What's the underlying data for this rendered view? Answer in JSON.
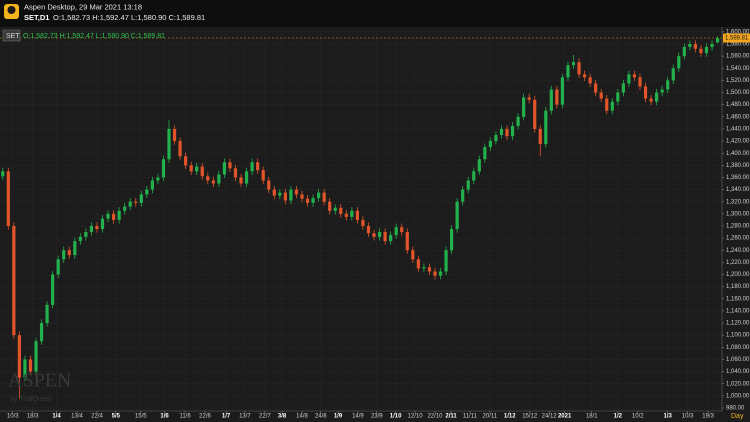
{
  "header": {
    "app": "Aspen Desktop, 29 Mar 2021 13:18",
    "symbol": "SET,D1",
    "ohlc": "O:1,582.73 H:1,592.47 L:1,580.90 C:1,589.81"
  },
  "legend": {
    "symbol": "SET",
    "ohlc": "O:1,582.73 H:1,592.47 L:1,580.90 C:1,589.81"
  },
  "watermark": {
    "brand": "ASPEN",
    "by": "by TrialQuest"
  },
  "chart_data": {
    "type": "candlestick",
    "up_color": "#22b14c",
    "down_color": "#e2552b",
    "grid": true,
    "open": [
      1362,
      1370,
      1280,
      1100,
      1030,
      1060,
      1040,
      1090,
      1120,
      1150,
      1200,
      1225,
      1240,
      1232,
      1255,
      1262,
      1270,
      1280,
      1275,
      1292,
      1300,
      1290,
      1305,
      1312,
      1320,
      1318,
      1332,
      1340,
      1355,
      1360,
      1390,
      1440,
      1420,
      1395,
      1380,
      1370,
      1378,
      1362,
      1355,
      1350,
      1365,
      1385,
      1375,
      1360,
      1350,
      1370,
      1385,
      1372,
      1355,
      1340,
      1330,
      1335,
      1322,
      1340,
      1332,
      1325,
      1318,
      1326,
      1335,
      1320,
      1305,
      1310,
      1300,
      1295,
      1305,
      1290,
      1280,
      1268,
      1262,
      1270,
      1255,
      1265,
      1278,
      1270,
      1240,
      1225,
      1210,
      1212,
      1205,
      1198,
      1205,
      1240,
      1275,
      1320,
      1340,
      1355,
      1370,
      1390,
      1410,
      1420,
      1430,
      1440,
      1428,
      1445,
      1460,
      1492,
      1488,
      1440,
      1415,
      1470,
      1505,
      1480,
      1525,
      1545,
      1550,
      1530,
      1525,
      1515,
      1500,
      1490,
      1470,
      1485,
      1500,
      1515,
      1530,
      1525,
      1510,
      1490,
      1485,
      1500,
      1505,
      1520,
      1540,
      1560,
      1575,
      1580,
      1572,
      1565,
      1575,
      1582.73
    ],
    "high": [
      1376,
      1376,
      1286,
      1106,
      1066,
      1066,
      1096,
      1126,
      1156,
      1206,
      1231,
      1246,
      1246,
      1261,
      1268,
      1276,
      1286,
      1286,
      1298,
      1306,
      1306,
      1311,
      1318,
      1326,
      1326,
      1338,
      1346,
      1361,
      1366,
      1396,
      1455,
      1446,
      1426,
      1401,
      1386,
      1384,
      1384,
      1368,
      1361,
      1371,
      1391,
      1391,
      1381,
      1366,
      1376,
      1391,
      1391,
      1378,
      1361,
      1346,
      1341,
      1341,
      1346,
      1346,
      1338,
      1331,
      1332,
      1341,
      1341,
      1326,
      1316,
      1316,
      1306,
      1311,
      1311,
      1296,
      1286,
      1274,
      1276,
      1276,
      1271,
      1284,
      1284,
      1276,
      1246,
      1231,
      1218,
      1218,
      1211,
      1211,
      1246,
      1281,
      1326,
      1346,
      1361,
      1376,
      1396,
      1416,
      1426,
      1436,
      1446,
      1446,
      1451,
      1466,
      1498,
      1498,
      1494,
      1446,
      1476,
      1511,
      1511,
      1531,
      1551,
      1562,
      1556,
      1536,
      1531,
      1521,
      1506,
      1496,
      1491,
      1506,
      1521,
      1536,
      1536,
      1531,
      1516,
      1496,
      1506,
      1511,
      1526,
      1546,
      1566,
      1581,
      1586,
      1586,
      1578,
      1581,
      1586,
      1592.47
    ],
    "low": [
      1356,
      1274,
      1094,
      995,
      1024,
      1034,
      1034,
      1084,
      1114,
      1144,
      1194,
      1219,
      1226,
      1226,
      1249,
      1256,
      1264,
      1269,
      1269,
      1286,
      1284,
      1284,
      1299,
      1306,
      1312,
      1312,
      1326,
      1334,
      1349,
      1354,
      1384,
      1414,
      1389,
      1374,
      1364,
      1364,
      1356,
      1349,
      1344,
      1344,
      1359,
      1369,
      1354,
      1344,
      1344,
      1364,
      1366,
      1349,
      1334,
      1324,
      1324,
      1316,
      1316,
      1326,
      1319,
      1312,
      1312,
      1320,
      1314,
      1299,
      1299,
      1294,
      1289,
      1289,
      1284,
      1274,
      1262,
      1256,
      1256,
      1249,
      1249,
      1259,
      1264,
      1234,
      1219,
      1204,
      1204,
      1199,
      1192,
      1192,
      1199,
      1234,
      1269,
      1314,
      1334,
      1349,
      1364,
      1384,
      1404,
      1414,
      1424,
      1422,
      1422,
      1439,
      1454,
      1482,
      1434,
      1395,
      1409,
      1464,
      1474,
      1474,
      1519,
      1539,
      1524,
      1519,
      1509,
      1494,
      1484,
      1464,
      1464,
      1479,
      1494,
      1509,
      1519,
      1504,
      1484,
      1479,
      1479,
      1494,
      1499,
      1514,
      1534,
      1554,
      1569,
      1566,
      1559,
      1559,
      1569,
      1580.9
    ],
    "close": [
      1370,
      1280,
      1100,
      1030,
      1060,
      1040,
      1090,
      1120,
      1150,
      1200,
      1225,
      1240,
      1232,
      1255,
      1262,
      1270,
      1280,
      1275,
      1292,
      1300,
      1290,
      1305,
      1312,
      1320,
      1318,
      1332,
      1340,
      1355,
      1360,
      1390,
      1440,
      1420,
      1395,
      1380,
      1370,
      1378,
      1362,
      1355,
      1350,
      1365,
      1385,
      1375,
      1360,
      1350,
      1370,
      1385,
      1372,
      1355,
      1340,
      1330,
      1335,
      1322,
      1340,
      1332,
      1325,
      1318,
      1326,
      1335,
      1320,
      1305,
      1310,
      1300,
      1295,
      1305,
      1290,
      1280,
      1268,
      1262,
      1270,
      1255,
      1265,
      1278,
      1270,
      1240,
      1225,
      1210,
      1212,
      1205,
      1198,
      1205,
      1240,
      1275,
      1320,
      1340,
      1355,
      1370,
      1390,
      1410,
      1420,
      1430,
      1440,
      1428,
      1445,
      1460,
      1492,
      1488,
      1440,
      1415,
      1470,
      1505,
      1480,
      1525,
      1545,
      1550,
      1530,
      1525,
      1515,
      1500,
      1490,
      1470,
      1485,
      1500,
      1515,
      1530,
      1525,
      1510,
      1490,
      1485,
      1500,
      1505,
      1520,
      1540,
      1560,
      1575,
      1580,
      1572,
      1565,
      1575,
      1580,
      1589.81
    ],
    "last_price_label": "1,589.81",
    "xlim": [
      -0.5,
      129.8
    ],
    "xlabel": "Day",
    "xticks": [
      {
        "value": 1.8,
        "label": "10/3"
      },
      {
        "value": 5.4,
        "label": "18/3"
      },
      {
        "value": 9.7,
        "label": "1/4",
        "major": true
      },
      {
        "value": 13.4,
        "label": "13/4"
      },
      {
        "value": 17,
        "label": "22/4"
      },
      {
        "value": 20.4,
        "label": "5/5",
        "major": true
      },
      {
        "value": 24.9,
        "label": "15/5"
      },
      {
        "value": 29.2,
        "label": "1/6",
        "major": true
      },
      {
        "value": 32.9,
        "label": "11/6"
      },
      {
        "value": 36.5,
        "label": "22/6"
      },
      {
        "value": 40.3,
        "label": "1/7",
        "major": true
      },
      {
        "value": 43.7,
        "label": "13/7"
      },
      {
        "value": 47.3,
        "label": "22/7"
      },
      {
        "value": 50.4,
        "label": "3/8",
        "major": true
      },
      {
        "value": 54,
        "label": "14/8"
      },
      {
        "value": 57.4,
        "label": "24/8"
      },
      {
        "value": 60.5,
        "label": "1/9",
        "major": true
      },
      {
        "value": 64.1,
        "label": "14/9"
      },
      {
        "value": 67.5,
        "label": "23/9"
      },
      {
        "value": 70.9,
        "label": "1/10",
        "major": true
      },
      {
        "value": 74.4,
        "label": "12/10"
      },
      {
        "value": 78,
        "label": "22/10"
      },
      {
        "value": 80.9,
        "label": "2/11",
        "major": true
      },
      {
        "value": 84.3,
        "label": "11/11"
      },
      {
        "value": 87.9,
        "label": "20/11"
      },
      {
        "value": 91.5,
        "label": "1/12",
        "major": true
      },
      {
        "value": 95.1,
        "label": "15/12"
      },
      {
        "value": 98.6,
        "label": "24/12"
      },
      {
        "value": 101.4,
        "label": "2021",
        "major": true
      },
      {
        "value": 106.3,
        "label": "18/1"
      },
      {
        "value": 111,
        "label": "1/2",
        "major": true
      },
      {
        "value": 114.6,
        "label": "10/2"
      },
      {
        "value": 120,
        "label": "1/3",
        "major": true
      },
      {
        "value": 123.6,
        "label": "10/3"
      },
      {
        "value": 127.3,
        "label": "19/3"
      }
    ],
    "ylim": [
      975,
      1608
    ],
    "yticks": [
      {
        "value": 980,
        "label": "980.00"
      },
      {
        "value": 1000,
        "label": "1,000.00"
      },
      {
        "value": 1020,
        "label": "1,020.00"
      },
      {
        "value": 1040,
        "label": "1,040.00"
      },
      {
        "value": 1060,
        "label": "1,060.00"
      },
      {
        "value": 1080,
        "label": "1,080.00"
      },
      {
        "value": 1100,
        "label": "1,100.00"
      },
      {
        "value": 1120,
        "label": "1,120.00"
      },
      {
        "value": 1140,
        "label": "1,140.00"
      },
      {
        "value": 1160,
        "label": "1,160.00"
      },
      {
        "value": 1180,
        "label": "1,180.00"
      },
      {
        "value": 1200,
        "label": "1,200.00"
      },
      {
        "value": 1220,
        "label": "1,220.00"
      },
      {
        "value": 1240,
        "label": "1,240.00"
      },
      {
        "value": 1260,
        "label": "1,260.00"
      },
      {
        "value": 1280,
        "label": "1,280.00"
      },
      {
        "value": 1300,
        "label": "1,300.00"
      },
      {
        "value": 1320,
        "label": "1,320.00"
      },
      {
        "value": 1340,
        "label": "1,340.00"
      },
      {
        "value": 1360,
        "label": "1,360.00"
      },
      {
        "value": 1380,
        "label": "1,380.00"
      },
      {
        "value": 1400,
        "label": "1,400.00"
      },
      {
        "value": 1420,
        "label": "1,420.00"
      },
      {
        "value": 1440,
        "label": "1,440.00"
      },
      {
        "value": 1460,
        "label": "1,460.00"
      },
      {
        "value": 1480,
        "label": "1,480.00"
      },
      {
        "value": 1500,
        "label": "1,500.00"
      },
      {
        "value": 1520,
        "label": "1,520.00"
      },
      {
        "value": 1540,
        "label": "1,540.00"
      },
      {
        "value": 1560,
        "label": "1,560.00"
      },
      {
        "value": 1580,
        "label": "1,580.00"
      },
      {
        "value": 1600,
        "label": "1,600.00"
      }
    ]
  }
}
